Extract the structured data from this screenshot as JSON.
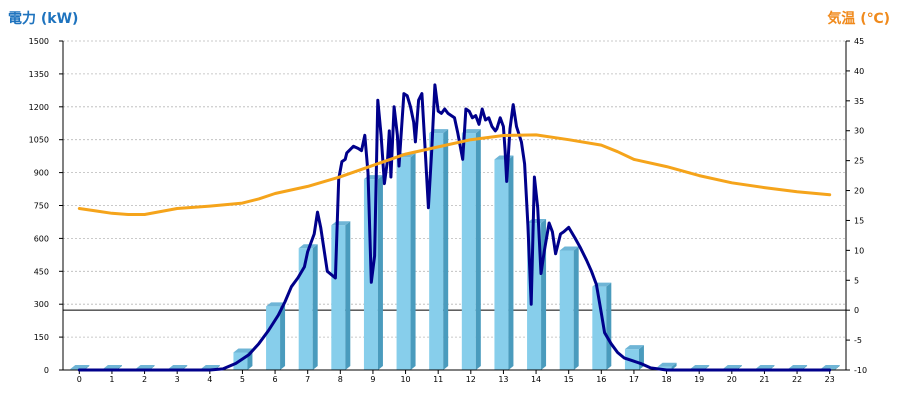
{
  "chart_data": {
    "type": "bar+line",
    "left_axis_title": "電力 (kW)",
    "right_axis_title": "気温 (℃)",
    "left_axis": {
      "min": 0,
      "max": 1500,
      "ticks": [
        0,
        150,
        300,
        450,
        600,
        750,
        900,
        1050,
        1200,
        1350,
        1500
      ]
    },
    "right_axis": {
      "min": -10,
      "max": 45,
      "ticks": [
        -10,
        -5,
        0,
        5,
        10,
        15,
        20,
        25,
        30,
        35,
        40,
        45
      ]
    },
    "x_ticks": [
      "0",
      "1",
      "2",
      "3",
      "4",
      "5",
      "6",
      "7",
      "8",
      "9",
      "10",
      "11",
      "12",
      "13",
      "14",
      "15",
      "16",
      "17",
      "18",
      "19",
      "20",
      "21",
      "22",
      "23"
    ],
    "grid": true,
    "colors": {
      "bar": "#87ceeb",
      "bar_side": "#4a9bbd",
      "power_line": "#00008b",
      "temp_line": "#f5a41b",
      "zero_line": "#000000"
    },
    "series": [
      {
        "kind": "bar",
        "axis": "left",
        "values": [
          0,
          0,
          0,
          0,
          0,
          80,
          290,
          555,
          660,
          870,
          970,
          1080,
          1080,
          960,
          670,
          545,
          380,
          95,
          15,
          0,
          0,
          0,
          0,
          0
        ]
      },
      {
        "kind": "line",
        "axis": "left",
        "points": [
          [
            0,
            0
          ],
          [
            1,
            0
          ],
          [
            2,
            0
          ],
          [
            3,
            0
          ],
          [
            4,
            0
          ],
          [
            4.4,
            5
          ],
          [
            4.8,
            30
          ],
          [
            5.2,
            70
          ],
          [
            5.5,
            120
          ],
          [
            5.8,
            180
          ],
          [
            6.1,
            250
          ],
          [
            6.3,
            310
          ],
          [
            6.5,
            380
          ],
          [
            6.7,
            420
          ],
          [
            6.9,
            470
          ],
          [
            7.0,
            540
          ],
          [
            7.2,
            620
          ],
          [
            7.3,
            720
          ],
          [
            7.4,
            650
          ],
          [
            7.6,
            450
          ],
          [
            7.85,
            420
          ],
          [
            7.95,
            870
          ],
          [
            8.05,
            950
          ],
          [
            8.15,
            960
          ],
          [
            8.2,
            990
          ],
          [
            8.4,
            1020
          ],
          [
            8.55,
            1010
          ],
          [
            8.65,
            1000
          ],
          [
            8.75,
            1070
          ],
          [
            8.85,
            900
          ],
          [
            8.95,
            400
          ],
          [
            9.05,
            520
          ],
          [
            9.15,
            1230
          ],
          [
            9.25,
            1070
          ],
          [
            9.35,
            850
          ],
          [
            9.45,
            960
          ],
          [
            9.5,
            1090
          ],
          [
            9.55,
            880
          ],
          [
            9.65,
            1200
          ],
          [
            9.75,
            1070
          ],
          [
            9.8,
            930
          ],
          [
            9.95,
            1260
          ],
          [
            10.05,
            1250
          ],
          [
            10.15,
            1200
          ],
          [
            10.25,
            1130
          ],
          [
            10.3,
            1040
          ],
          [
            10.4,
            1230
          ],
          [
            10.5,
            1260
          ],
          [
            10.6,
            1010
          ],
          [
            10.7,
            740
          ],
          [
            10.8,
            1000
          ],
          [
            10.9,
            1300
          ],
          [
            11.0,
            1180
          ],
          [
            11.1,
            1170
          ],
          [
            11.2,
            1190
          ],
          [
            11.3,
            1170
          ],
          [
            11.5,
            1150
          ],
          [
            11.6,
            1080
          ],
          [
            11.75,
            960
          ],
          [
            11.85,
            1190
          ],
          [
            11.95,
            1180
          ],
          [
            12.05,
            1150
          ],
          [
            12.15,
            1160
          ],
          [
            12.25,
            1120
          ],
          [
            12.35,
            1190
          ],
          [
            12.45,
            1140
          ],
          [
            12.55,
            1150
          ],
          [
            12.65,
            1110
          ],
          [
            12.75,
            1090
          ],
          [
            12.8,
            1100
          ],
          [
            12.9,
            1150
          ],
          [
            13.0,
            1110
          ],
          [
            13.05,
            1000
          ],
          [
            13.1,
            860
          ],
          [
            13.2,
            1100
          ],
          [
            13.3,
            1210
          ],
          [
            13.4,
            1110
          ],
          [
            13.55,
            1040
          ],
          [
            13.65,
            940
          ],
          [
            13.75,
            660
          ],
          [
            13.85,
            300
          ],
          [
            13.95,
            880
          ],
          [
            14.05,
            740
          ],
          [
            14.15,
            440
          ],
          [
            14.25,
            540
          ],
          [
            14.4,
            670
          ],
          [
            14.5,
            630
          ],
          [
            14.6,
            530
          ],
          [
            14.75,
            620
          ],
          [
            14.85,
            630
          ],
          [
            15.0,
            650
          ],
          [
            15.2,
            600
          ],
          [
            15.35,
            560
          ],
          [
            15.55,
            500
          ],
          [
            15.7,
            450
          ],
          [
            15.85,
            390
          ],
          [
            16.0,
            260
          ],
          [
            16.1,
            170
          ],
          [
            16.3,
            120
          ],
          [
            16.5,
            80
          ],
          [
            16.7,
            55
          ],
          [
            17.0,
            40
          ],
          [
            17.2,
            30
          ],
          [
            17.5,
            10
          ],
          [
            18.0,
            0
          ],
          [
            19,
            0
          ],
          [
            20,
            0
          ],
          [
            21,
            0
          ],
          [
            22,
            0
          ],
          [
            23,
            0
          ]
        ]
      },
      {
        "kind": "line",
        "axis": "right",
        "points": [
          [
            0,
            17
          ],
          [
            0.5,
            16.6
          ],
          [
            1,
            16.2
          ],
          [
            1.5,
            16
          ],
          [
            2,
            16
          ],
          [
            2.5,
            16.5
          ],
          [
            3,
            17
          ],
          [
            4,
            17.4
          ],
          [
            5,
            17.9
          ],
          [
            5.5,
            18.6
          ],
          [
            6,
            19.5
          ],
          [
            7,
            20.7
          ],
          [
            8,
            22.3
          ],
          [
            9,
            24.2
          ],
          [
            10,
            26.1
          ],
          [
            11,
            27.3
          ],
          [
            12,
            28.5
          ],
          [
            13,
            29.2
          ],
          [
            14,
            29.3
          ],
          [
            15,
            28.5
          ],
          [
            16,
            27.6
          ],
          [
            16.5,
            26.5
          ],
          [
            17,
            25.2
          ],
          [
            18,
            24
          ],
          [
            19,
            22.5
          ],
          [
            20,
            21.3
          ],
          [
            21,
            20.5
          ],
          [
            22,
            19.8
          ],
          [
            23,
            19.3
          ]
        ]
      }
    ]
  }
}
